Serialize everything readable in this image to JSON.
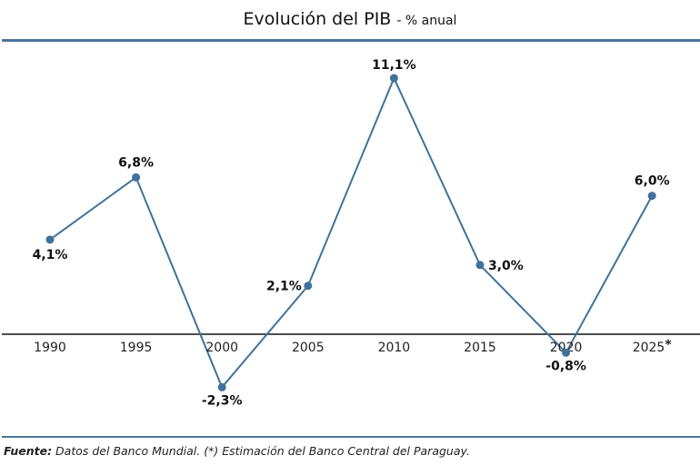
{
  "title": {
    "main": "Evolución del PIB",
    "sub": "- % anual"
  },
  "colors": {
    "line": "#3f729b",
    "rule": "#4a7699",
    "axis": "#111111"
  },
  "chart_data": {
    "type": "line",
    "title": "Evolución del PIB - % anual",
    "categories": [
      "1990",
      "1995",
      "2000",
      "2005",
      "2010",
      "2015",
      "2020",
      "2025*"
    ],
    "values": [
      4.1,
      6.8,
      -2.3,
      2.1,
      11.1,
      3.0,
      -0.8,
      6.0
    ],
    "data_labels": [
      "4,1%",
      "6,8%",
      "-2,3%",
      "2,1%",
      "11,1%",
      "3,0%",
      "-0,8%",
      "6,0%"
    ],
    "xlabel": "",
    "ylabel": "",
    "grid": false,
    "legend": "none"
  },
  "footer": {
    "source_label": "Fuente:",
    "text": " Datos del Banco Mundial. (*) Estimación del Banco Central del Paraguay."
  }
}
